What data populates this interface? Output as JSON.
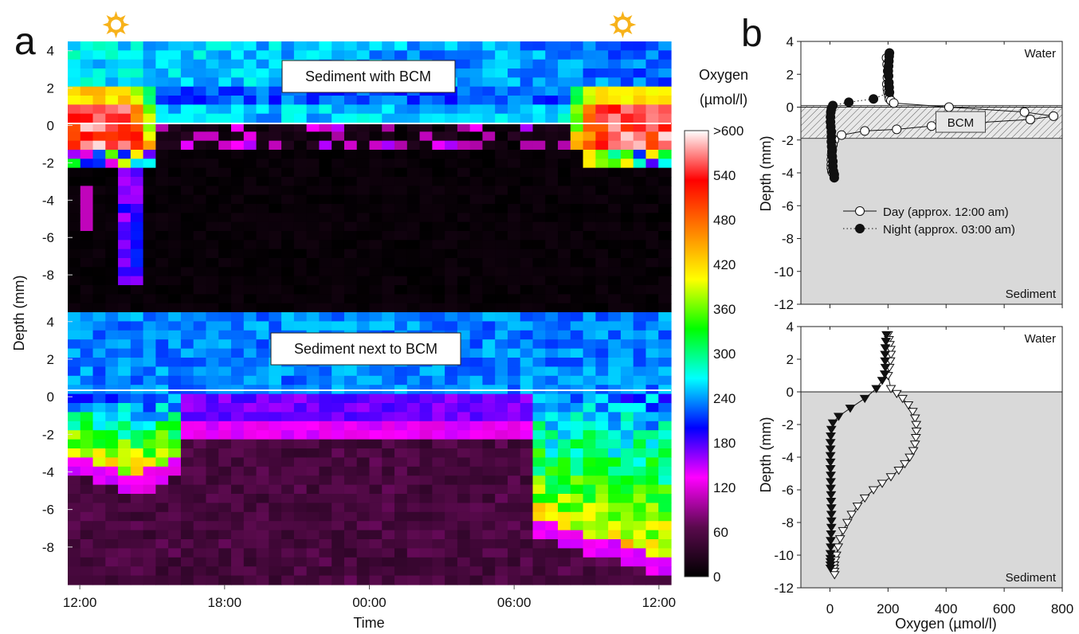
{
  "panel_labels": {
    "a": "a",
    "b": "b"
  },
  "icons": {
    "day_icon": "sun-icon",
    "night_icon": "moon-icon",
    "sun_color": "#f7b21a",
    "moon_color": "#111111"
  },
  "chart_data": [
    {
      "id": "a-top",
      "type": "heatmap",
      "box_label": "Sediment with  BCM",
      "xlabel": "",
      "ylabel": "Depth (mm)",
      "xlim_hours": [
        11.5,
        36.5
      ],
      "ylim": [
        -10,
        4.5
      ],
      "yticks": [
        4,
        2,
        0,
        -2,
        -4,
        -6,
        -8
      ],
      "interface_depth": 0,
      "icon_times": [
        "13:30",
        "01:00",
        "10:30"
      ]
    },
    {
      "id": "a-bottom",
      "type": "heatmap",
      "box_label": "Sediment next to BCM",
      "xlabel": "Time",
      "ylabel": "Depth (mm)",
      "xticks": [
        "12:00",
        "18:00",
        "00:00",
        "06:00",
        "12:00"
      ],
      "xlim_hours": [
        11.5,
        36.5
      ],
      "ylim": [
        -10,
        4.5
      ],
      "yticks": [
        4,
        2,
        0,
        -2,
        -4,
        -6,
        -8
      ],
      "interface_depth": 0
    },
    {
      "id": "colorbar",
      "type": "colorbar",
      "title_lines": [
        "Oxygen",
        "(µmol/l)"
      ],
      "ticks": [
        ">600",
        "540",
        "480",
        "420",
        "360",
        "300",
        "240",
        "180",
        "120",
        "60",
        "0"
      ],
      "stops": [
        "#000000",
        "#5a0a4d",
        "#ff00ff",
        "#0000ff",
        "#00ffff",
        "#00ff00",
        "#ffff00",
        "#ff8000",
        "#ff0000",
        "#ffffff"
      ]
    },
    {
      "id": "b-top",
      "type": "line",
      "xlabel": "Oxygen (µmol/l)",
      "ylabel": "Depth (mm)",
      "xlim": [
        -100,
        800
      ],
      "ylim": [
        -12,
        4
      ],
      "xticks": [
        0,
        200,
        400,
        600,
        800
      ],
      "yticks": [
        4,
        2,
        0,
        -2,
        -4,
        -6,
        -8,
        -10,
        -12
      ],
      "water_label": "Water",
      "sediment_label": "Sediment",
      "bcm_label": "BCM",
      "bcm_range": [
        -1.9,
        0.1
      ],
      "series": [
        {
          "name": "Day (approx. 12:00 am)",
          "marker": "circle-open",
          "line": "solid",
          "x": [
            195,
            197,
            199,
            198,
            196,
            198,
            200,
            203,
            205,
            210,
            220,
            410,
            670,
            770,
            690,
            505,
            350,
            230,
            120,
            40,
            15,
            10,
            8,
            6,
            5,
            5,
            5,
            7,
            10
          ],
          "y": [
            3.0,
            2.6,
            2.2,
            1.8,
            1.4,
            1.1,
            0.9,
            0.7,
            0.5,
            0.4,
            0.25,
            0.0,
            -0.3,
            -0.55,
            -0.75,
            -0.95,
            -1.15,
            -1.35,
            -1.45,
            -1.7,
            -2.0,
            -2.3,
            -2.6,
            -2.9,
            -3.2,
            -3.5,
            -3.7,
            -3.9,
            -4.0
          ]
        },
        {
          "name": "Night (approx. 03:00 am)",
          "marker": "circle-filled",
          "line": "dotted",
          "x": [
            205,
            204,
            203,
            202,
            201,
            202,
            203,
            204,
            205,
            150,
            65,
            10,
            5,
            3,
            2,
            2,
            3,
            5,
            5,
            5,
            6,
            7,
            8,
            10,
            10,
            12,
            15,
            15
          ],
          "y": [
            3.3,
            3.1,
            2.8,
            2.5,
            2.2,
            1.9,
            1.5,
            1.2,
            0.9,
            0.5,
            0.3,
            0.1,
            -0.1,
            -0.3,
            -0.6,
            -0.9,
            -1.2,
            -1.5,
            -1.8,
            -2.1,
            -2.4,
            -2.7,
            -3.0,
            -3.3,
            -3.6,
            -3.9,
            -4.1,
            -4.3
          ]
        }
      ]
    },
    {
      "id": "b-bottom",
      "type": "line",
      "xlabel": "Oxygen (µmol/l)",
      "ylabel": "Depth (mm)",
      "xlim": [
        -100,
        800
      ],
      "ylim": [
        -12,
        4
      ],
      "xticks": [
        0,
        200,
        400,
        600,
        800
      ],
      "yticks": [
        4,
        2,
        0,
        -2,
        -4,
        -6,
        -8,
        -10,
        -12
      ],
      "water_label": "Water",
      "sediment_label": "Sediment",
      "series": [
        {
          "name": "",
          "marker": "triangle-down-open",
          "line": "solid",
          "x": [
            200,
            203,
            206,
            209,
            210,
            208,
            205,
            200,
            210,
            230,
            250,
            270,
            285,
            293,
            297,
            298,
            296,
            293,
            287,
            275,
            258,
            237,
            210,
            180,
            150,
            120,
            95,
            75,
            60,
            45,
            35,
            28,
            22,
            18,
            15,
            14,
            15,
            16
          ],
          "y": [
            3.5,
            3.2,
            2.9,
            2.6,
            2.3,
            1.9,
            1.5,
            1.0,
            0.2,
            -0.1,
            -0.4,
            -0.8,
            -1.2,
            -1.6,
            -2.0,
            -2.4,
            -2.8,
            -3.2,
            -3.6,
            -4.0,
            -4.4,
            -4.8,
            -5.2,
            -5.6,
            -6.0,
            -6.5,
            -7.0,
            -7.5,
            -8.0,
            -8.5,
            -9.0,
            -9.5,
            -10.0,
            -10.3,
            -10.6,
            -10.8,
            -11.0,
            -11.2
          ]
        },
        {
          "name": "",
          "marker": "triangle-down-filled",
          "line": "solid",
          "x": [
            195,
            193,
            191,
            190,
            190,
            191,
            189,
            180,
            160,
            120,
            70,
            30,
            10,
            5,
            3,
            2,
            2,
            2,
            2,
            2,
            3,
            3,
            3,
            4,
            4,
            5,
            5,
            5,
            5,
            4,
            3,
            3,
            2,
            2,
            2,
            2,
            2
          ],
          "y": [
            3.5,
            3.1,
            2.7,
            2.3,
            1.9,
            1.5,
            1.1,
            0.7,
            0.2,
            -0.4,
            -1.0,
            -1.5,
            -1.9,
            -2.3,
            -2.7,
            -3.1,
            -3.5,
            -3.9,
            -4.3,
            -4.7,
            -5.1,
            -5.5,
            -5.9,
            -6.3,
            -6.7,
            -7.1,
            -7.5,
            -7.9,
            -8.3,
            -8.7,
            -9.1,
            -9.5,
            -9.9,
            -10.2,
            -10.4,
            -10.6,
            -10.8
          ]
        }
      ]
    }
  ]
}
